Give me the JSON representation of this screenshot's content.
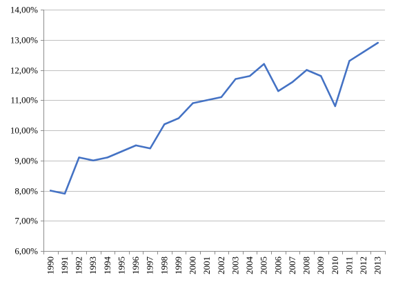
{
  "colors": {
    "series": "#4472C4",
    "grid": "#bfbfbf",
    "axis": "#8c8c8c",
    "text": "#000000",
    "background": "#ffffff"
  },
  "chart_data": {
    "type": "line",
    "title": "",
    "xlabel": "",
    "ylabel": "",
    "ylim": [
      6.0,
      14.0
    ],
    "grid": "horizontal",
    "legend": "none",
    "y_tick_values": [
      6,
      7,
      8,
      9,
      10,
      11,
      12,
      13,
      14
    ],
    "y_tick_labels": [
      "6,00%",
      "7,00%",
      "8,00%",
      "9,00%",
      "10,00%",
      "11,00%",
      "12,00%",
      "13,00%",
      "14,00%"
    ],
    "categories": [
      "1990",
      "1991",
      "1992",
      "1993",
      "1994",
      "1995",
      "1996",
      "1997",
      "1998",
      "1999",
      "2000",
      "2001",
      "2002",
      "2003",
      "2004",
      "2005",
      "2006",
      "2007",
      "2008",
      "2009",
      "2010",
      "2011",
      "2012",
      "2013"
    ],
    "series": [
      {
        "values": [
          8.0,
          7.9,
          9.1,
          9.0,
          9.1,
          9.3,
          9.5,
          9.4,
          10.2,
          10.4,
          10.9,
          11.0,
          11.1,
          11.7,
          11.8,
          12.2,
          11.3,
          11.6,
          12.0,
          11.8,
          10.8,
          12.3,
          12.6,
          12.9
        ]
      }
    ]
  }
}
